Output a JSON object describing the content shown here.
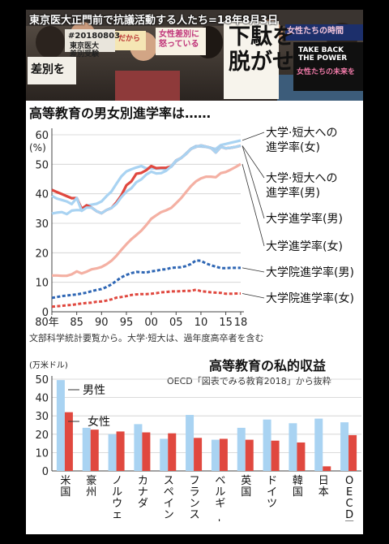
{
  "photo": {
    "caption": "東京医大正門前で抗議活動する人たち=18年8月3日",
    "signs": [
      "#20180803",
      "東京医大\n差別受験",
      "差別を",
      "だから",
      "女性差別に\n怒っている",
      "下駄を\n脱がせろ",
      "女性たちの時間",
      "TAKE BACK\nTHE POWER",
      "女性たちの未来を"
    ]
  },
  "chart_data": [
    {
      "type": "line",
      "title": "高等教育の男女別進学率は……",
      "ylabel": "(%)",
      "ylim": [
        0,
        60
      ],
      "yticks": [
        0,
        10,
        20,
        30,
        40,
        50,
        60
      ],
      "xticks": [
        "80年",
        "85",
        "90",
        "95",
        "00",
        "05",
        "10",
        "15",
        "18"
      ],
      "x": [
        1980,
        1981,
        1982,
        1983,
        1984,
        1985,
        1986,
        1987,
        1988,
        1989,
        1990,
        1991,
        1992,
        1993,
        1994,
        1995,
        1996,
        1997,
        1998,
        1999,
        2000,
        2001,
        2002,
        2003,
        2004,
        2005,
        2006,
        2007,
        2008,
        2009,
        2010,
        2011,
        2012,
        2013,
        2014,
        2015,
        2016,
        2017,
        2018
      ],
      "series": [
        {
          "name": "大学·短大への進学率(女)",
          "color": "#a9d3f2",
          "style": "solid",
          "values": [
            33.3,
            33.6,
            33.8,
            33.1,
            34.3,
            34.5,
            34.4,
            36.0,
            36.3,
            36.6,
            37.4,
            39.2,
            40.8,
            43.4,
            45.9,
            47.6,
            48.3,
            48.9,
            49.4,
            48.6,
            48.7,
            48.5,
            48.5,
            48.3,
            49.1,
            51.0,
            52.1,
            53.7,
            55.3,
            56.2,
            56.0,
            55.9,
            55.5,
            55.2,
            56.5,
            56.9,
            57.3,
            57.7,
            58.1
          ]
        },
        {
          "name": "大学·短大への進学率(男)",
          "color": "#e0483f",
          "style": "solid",
          "values": [
            41.3,
            40.6,
            39.9,
            39.2,
            38.5,
            38.6,
            34.9,
            36.1,
            35.3,
            34.1,
            33.4,
            34.5,
            35.2,
            37.1,
            39.5,
            42.9,
            44.2,
            46.8,
            47.1,
            48.0,
            49.4,
            48.7,
            48.8,
            48.8,
            49.3,
            51.3,
            52.1,
            53.5,
            55.2,
            55.9,
            56.4,
            56.0,
            55.6,
            54.0,
            55.9,
            55.4,
            55.6,
            55.9,
            56.3
          ]
        },
        {
          "name": "大学進学率(男)",
          "color": "#a9d3f2",
          "style": "solid",
          "values": [
            39.3,
            38.4,
            37.9,
            37.4,
            36.5,
            38.6,
            34.2,
            35.3,
            35.3,
            34.1,
            33.4,
            34.5,
            35.2,
            36.6,
            38.9,
            40.7,
            41.9,
            43.9,
            44.9,
            46.5,
            47.5,
            46.9,
            47.0,
            47.8,
            49.3,
            51.3,
            52.1,
            53.5,
            55.2,
            55.9,
            56.4,
            56.0,
            55.6,
            54.0,
            55.9,
            55.4,
            55.6,
            55.9,
            56.3
          ]
        },
        {
          "name": "大学進学率(女)",
          "color": "#f4b0a3",
          "style": "solid",
          "values": [
            12.3,
            12.3,
            12.2,
            12.2,
            12.7,
            13.7,
            13.0,
            13.6,
            14.4,
            14.7,
            15.2,
            16.1,
            17.3,
            19.0,
            21.0,
            22.9,
            24.6,
            26.0,
            27.5,
            29.4,
            31.5,
            32.7,
            33.8,
            34.4,
            35.2,
            36.8,
            38.5,
            40.6,
            42.6,
            44.2,
            45.2,
            45.8,
            45.8,
            45.6,
            47.0,
            47.4,
            48.2,
            49.1,
            50.1
          ]
        },
        {
          "name": "大学院進学率(男)",
          "color": "#2e66b4",
          "style": "dashed",
          "values": [
            4.7,
            5.0,
            5.3,
            5.5,
            5.7,
            5.9,
            6.2,
            6.5,
            7.0,
            7.4,
            7.7,
            8.4,
            9.3,
            10.5,
            11.7,
            12.5,
            13.1,
            13.5,
            13.4,
            13.3,
            13.7,
            13.9,
            14.3,
            14.4,
            14.9,
            15.0,
            15.1,
            15.5,
            16.2,
            17.4,
            17.3,
            16.4,
            15.8,
            15.3,
            14.8,
            14.8,
            14.9,
            14.9,
            14.9
          ]
        },
        {
          "name": "大学院進学率(女)",
          "color": "#e0483f",
          "style": "dashed",
          "values": [
            1.7,
            1.9,
            2.0,
            2.2,
            2.3,
            2.6,
            2.8,
            3.0,
            3.1,
            3.4,
            3.5,
            3.8,
            4.2,
            4.8,
            5.0,
            5.3,
            5.7,
            5.9,
            6.0,
            6.0,
            6.1,
            6.3,
            6.6,
            6.7,
            6.9,
            6.9,
            7.0,
            7.1,
            7.1,
            7.5,
            7.0,
            6.8,
            6.6,
            6.5,
            6.4,
            6.1,
            6.1,
            6.2,
            6.2
          ]
        }
      ],
      "note": "文部科学統計要覧から。大学·短大は、過年度高卒者を含む"
    },
    {
      "type": "bar",
      "title": "高等教育の私的収益",
      "subtitle": "OECD「図表でみる教育2018」から抜粋",
      "ylabel": "(万米ドル)",
      "ylim": [
        0,
        50
      ],
      "yticks": [
        0,
        10,
        20,
        30,
        40,
        50
      ],
      "categories": [
        "米国",
        "豪州",
        "ノルウェー",
        "カナダ",
        "スペイン",
        "フランス",
        "ベルギー",
        "英国",
        "ドイツ",
        "韓国",
        "日本",
        "OECD平均"
      ],
      "series": [
        {
          "name": "男性",
          "color": "#a9d3f2",
          "values": [
            49.5,
            23.5,
            20.0,
            25.5,
            17.5,
            30.5,
            17.0,
            23.5,
            28.0,
            26.0,
            28.5,
            26.5
          ]
        },
        {
          "name": "女性",
          "color": "#e0483f",
          "values": [
            32.0,
            22.5,
            21.5,
            21.0,
            20.5,
            18.0,
            17.5,
            17.0,
            16.5,
            15.5,
            2.5,
            19.5
          ]
        }
      ]
    }
  ]
}
